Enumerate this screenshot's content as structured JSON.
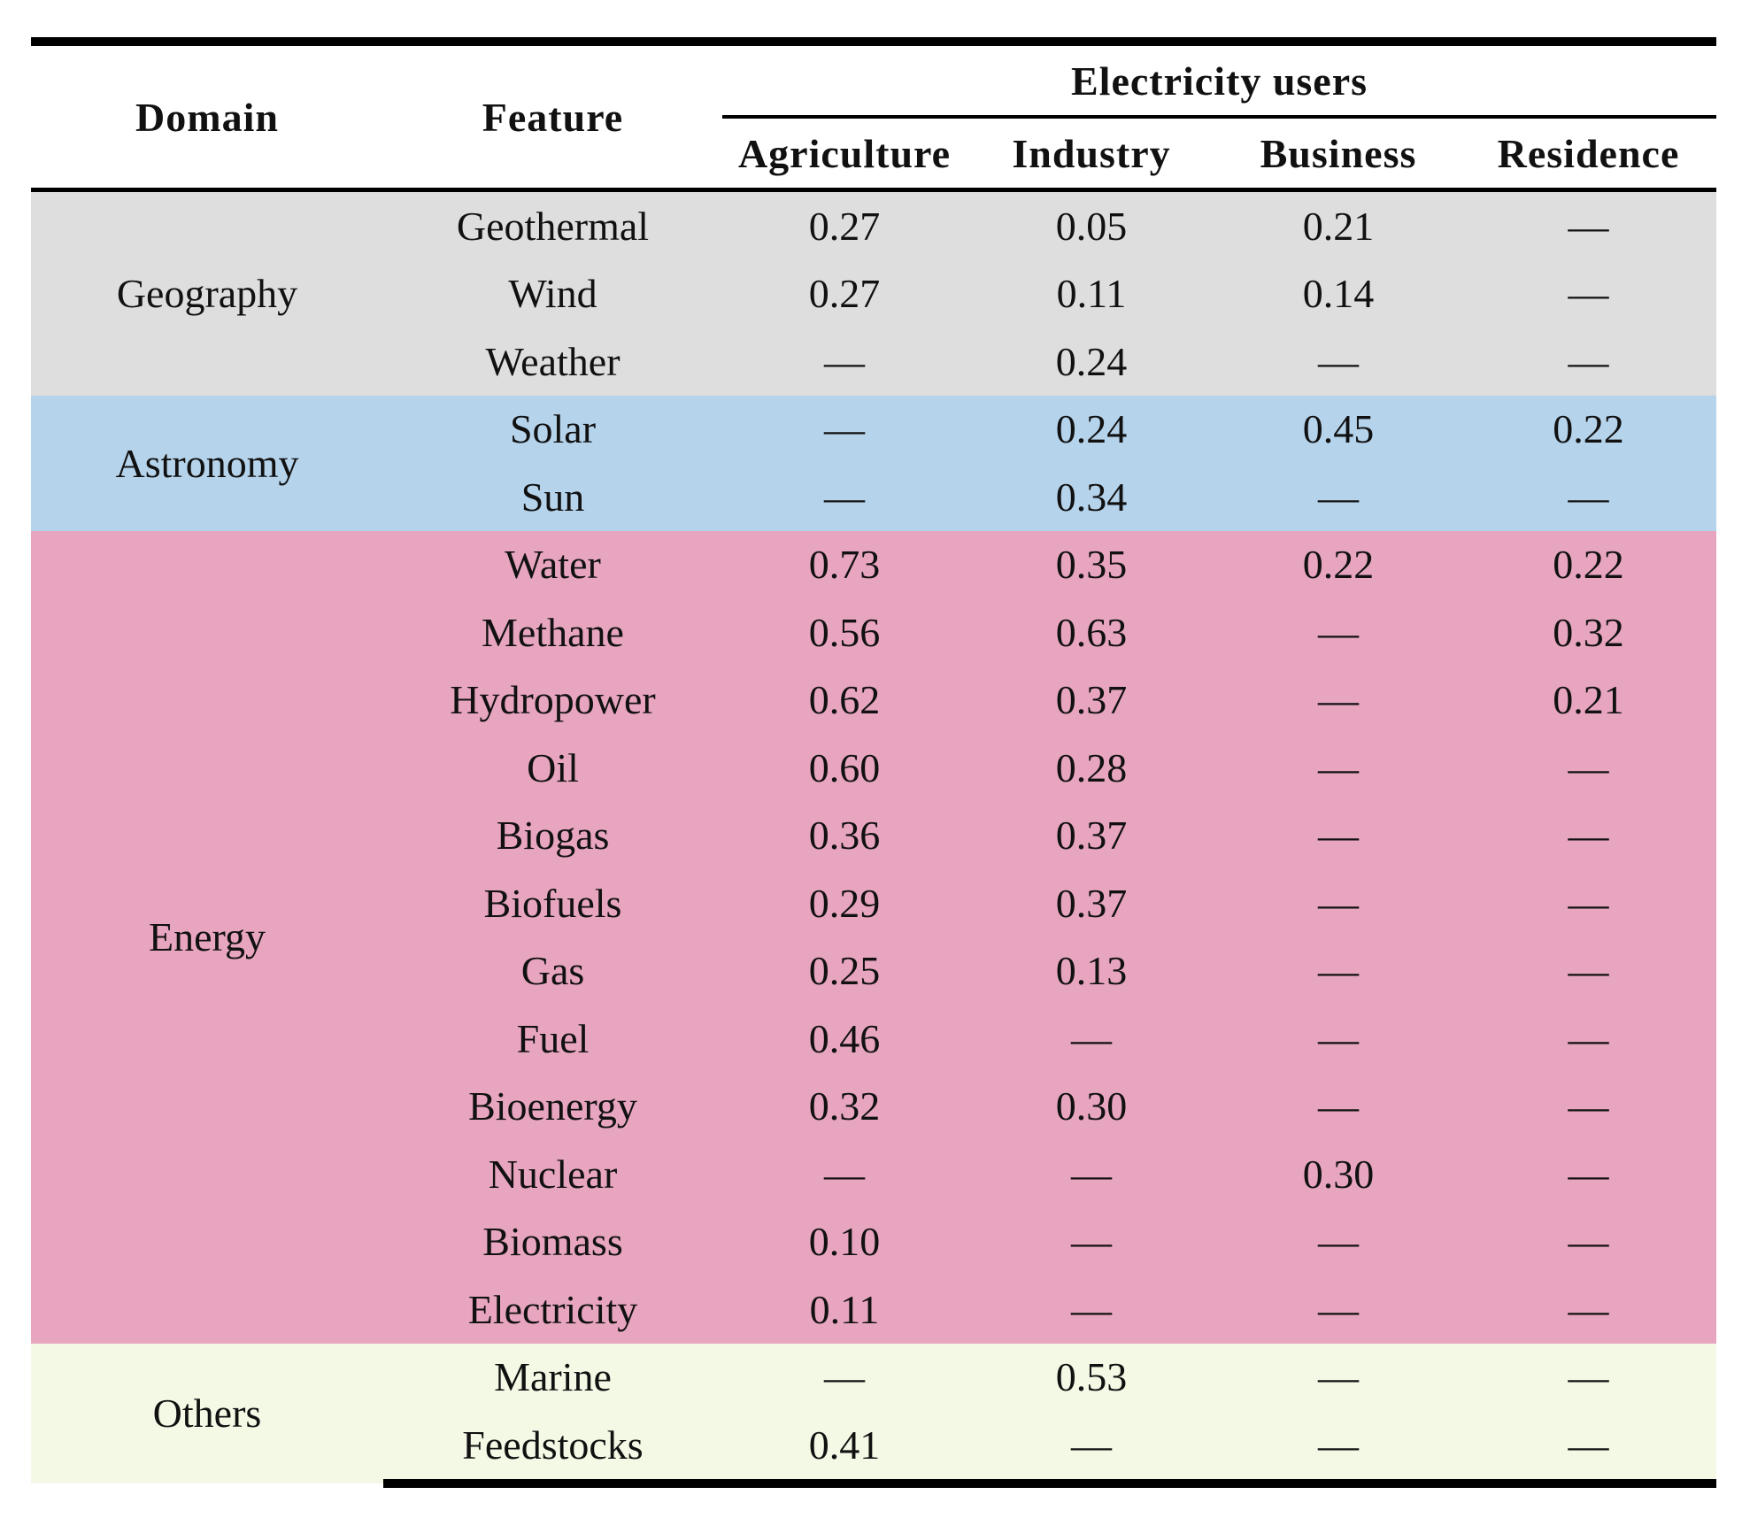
{
  "header": {
    "domain": "Domain",
    "feature": "Feature",
    "group": "Electricity users",
    "columns": [
      "Agriculture",
      "Industry",
      "Business",
      "Residence"
    ]
  },
  "groups": [
    {
      "domain": "Geography",
      "rows": [
        {
          "feature": "Geothermal",
          "values": [
            "0.27",
            "0.05",
            "0.21",
            "—"
          ]
        },
        {
          "feature": "Wind",
          "values": [
            "0.27",
            "0.11",
            "0.14",
            "—"
          ]
        },
        {
          "feature": "Weather",
          "values": [
            "—",
            "0.24",
            "—",
            "—"
          ]
        }
      ]
    },
    {
      "domain": "Astronomy",
      "rows": [
        {
          "feature": "Solar",
          "values": [
            "—",
            "0.24",
            "0.45",
            "0.22"
          ]
        },
        {
          "feature": "Sun",
          "values": [
            "—",
            "0.34",
            "—",
            "—"
          ]
        }
      ]
    },
    {
      "domain": "Energy",
      "rows": [
        {
          "feature": "Water",
          "values": [
            "0.73",
            "0.35",
            "0.22",
            "0.22"
          ]
        },
        {
          "feature": "Methane",
          "values": [
            "0.56",
            "0.63",
            "—",
            "0.32"
          ]
        },
        {
          "feature": "Hydropower",
          "values": [
            "0.62",
            "0.37",
            "—",
            "0.21"
          ]
        },
        {
          "feature": "Oil",
          "values": [
            "0.60",
            "0.28",
            "—",
            "—"
          ]
        },
        {
          "feature": "Biogas",
          "values": [
            "0.36",
            "0.37",
            "—",
            "—"
          ]
        },
        {
          "feature": "Biofuels",
          "values": [
            "0.29",
            "0.37",
            "—",
            "—"
          ]
        },
        {
          "feature": "Gas",
          "values": [
            "0.25",
            "0.13",
            "—",
            "—"
          ]
        },
        {
          "feature": "Fuel",
          "values": [
            "0.46",
            "—",
            "—",
            "—"
          ]
        },
        {
          "feature": "Bioenergy",
          "values": [
            "0.32",
            "0.30",
            "—",
            "—"
          ]
        },
        {
          "feature": "Nuclear",
          "values": [
            "—",
            "—",
            "0.30",
            "—"
          ]
        },
        {
          "feature": "Biomass",
          "values": [
            "0.10",
            "—",
            "—",
            "—"
          ]
        },
        {
          "feature": "Electricity",
          "values": [
            "0.11",
            "—",
            "—",
            "—"
          ]
        }
      ]
    },
    {
      "domain": "Others",
      "rows": [
        {
          "feature": "Marine",
          "values": [
            "—",
            "0.53",
            "—",
            "—"
          ]
        },
        {
          "feature": "Feedstocks",
          "values": [
            "0.41",
            "—",
            "—",
            "—"
          ]
        }
      ]
    }
  ]
}
